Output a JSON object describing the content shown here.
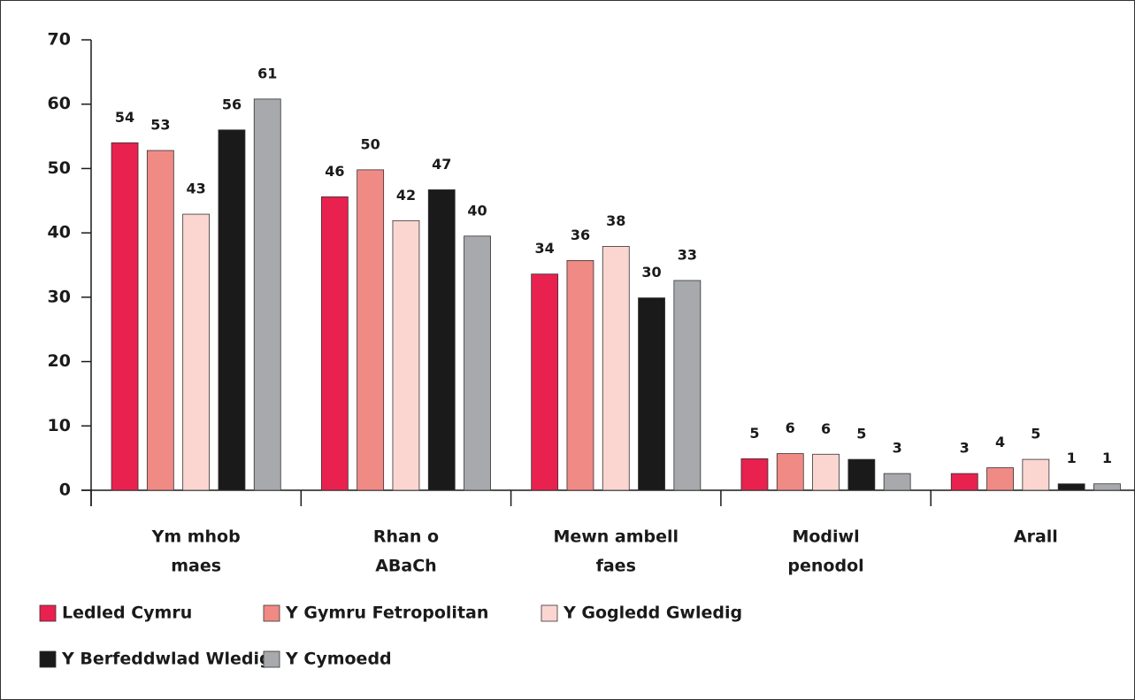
{
  "chart_data": {
    "type": "bar",
    "categories": [
      [
        "Ym mhob",
        "maes"
      ],
      [
        "Rhan o",
        "ABaCh"
      ],
      [
        "Mewn ambell",
        "faes"
      ],
      [
        "Modiwl",
        "penodol"
      ],
      [
        "Arall"
      ]
    ],
    "series": [
      {
        "name": "Ledled Cymru",
        "color": "#e8214f",
        "values": [
          54,
          45.6,
          33.6,
          4.9,
          2.6
        ],
        "value_labels": [
          "54",
          "46",
          "34",
          "5",
          "3"
        ]
      },
      {
        "name": "Y Gymru Fetropolitan",
        "color": "#f08a85",
        "values": [
          52.8,
          49.8,
          35.7,
          5.7,
          3.5
        ],
        "value_labels": [
          "53",
          "50",
          "36",
          "6",
          "4"
        ]
      },
      {
        "name": "Y Gogledd Gwledig",
        "color": "#fbd6d0",
        "values": [
          42.9,
          41.9,
          37.9,
          5.6,
          4.8
        ],
        "value_labels": [
          "43",
          "42",
          "38",
          "6",
          "5"
        ]
      },
      {
        "name": "Y Berfeddwlad Wledig",
        "color": "#1a1a1a",
        "values": [
          56,
          46.7,
          29.9,
          4.8,
          1.0
        ],
        "value_labels": [
          "56",
          "47",
          "30",
          "5",
          "1"
        ]
      },
      {
        "name": "Y Cymoedd",
        "color": "#a7a9ac",
        "values": [
          60.8,
          39.5,
          32.6,
          2.6,
          1.0
        ],
        "value_labels": [
          "61",
          "40",
          "33",
          "3",
          "1"
        ]
      }
    ],
    "ylim": [
      0,
      70
    ],
    "yticks": [
      0,
      10,
      20,
      30,
      40,
      50,
      60,
      70
    ],
    "grid": false,
    "legend": "bottom"
  }
}
